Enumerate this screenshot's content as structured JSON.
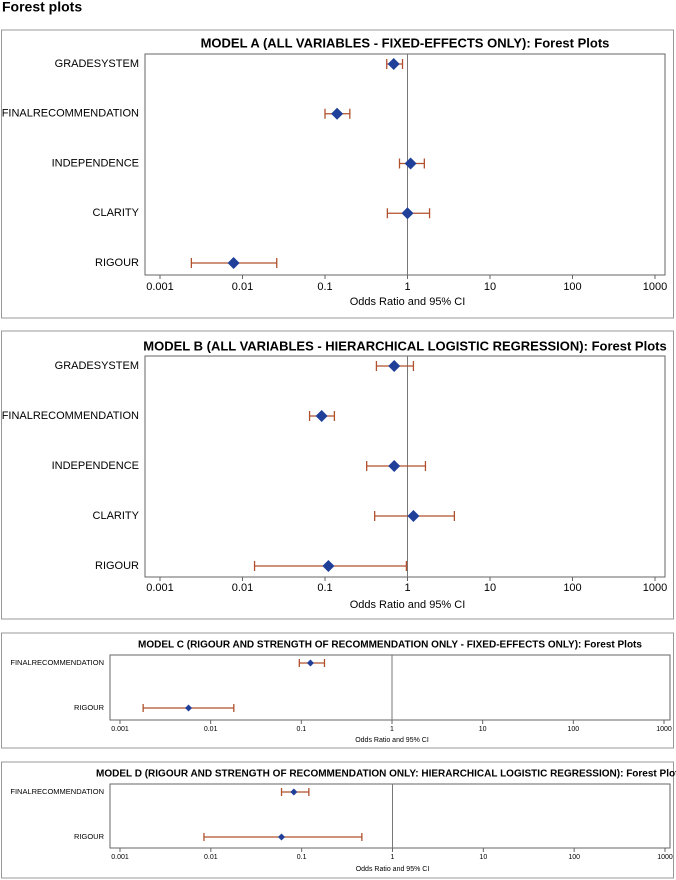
{
  "heading": "Forest plots",
  "chart_data": [
    {
      "type": "forest",
      "title": "MODEL A (ALL VARIABLES - FIXED-EFFECTS ONLY): Forest Plots",
      "x_label": "Odds Ratio and 95% CI",
      "categories": [
        "GRADESYSTEM",
        "FINALRECOMMENDATION",
        "INDEPENDENCE",
        "CLARITY",
        "RIGOUR"
      ],
      "values": [
        0.68,
        0.14,
        1.09,
        1.0,
        0.0078
      ],
      "lower": [
        0.56,
        0.1,
        0.8,
        0.57,
        0.0024
      ],
      "upper": [
        0.87,
        0.2,
        1.6,
        1.85,
        0.026
      ],
      "xscale": "log",
      "xlim": [
        0.001,
        1000
      ],
      "xticks": [
        0.001,
        0.01,
        0.1,
        1,
        10,
        100,
        1000
      ],
      "refline": 1,
      "marker_color": "#1f3f99",
      "ci_color": "#b0502c"
    },
    {
      "type": "forest",
      "title": "MODEL B (ALL VARIABLES - HIERARCHICAL LOGISTIC REGRESSION): Forest Plots",
      "x_label": "Odds Ratio and 95% CI",
      "categories": [
        "GRADESYSTEM",
        "FINALRECOMMENDATION",
        "INDEPENDENCE",
        "CLARITY",
        "RIGOUR"
      ],
      "values": [
        0.69,
        0.091,
        0.69,
        1.18,
        0.11
      ],
      "lower": [
        0.42,
        0.065,
        0.32,
        0.4,
        0.014
      ],
      "upper": [
        1.18,
        0.13,
        1.65,
        3.7,
        0.97
      ],
      "xscale": "log",
      "xlim": [
        0.001,
        1000
      ],
      "xticks": [
        0.001,
        0.01,
        0.1,
        1,
        10,
        100,
        1000
      ],
      "refline": 1,
      "marker_color": "#1f3f99",
      "ci_color": "#b0502c"
    },
    {
      "type": "forest",
      "title": "MODEL C (RIGOUR AND STRENGTH OF RECOMMENDATION ONLY - FIXED-EFFECTS ONLY): Forest Plots",
      "x_label": "Odds Ratio and 95% CI",
      "categories": [
        "FINALRECOMMENDATION",
        "RIGOUR"
      ],
      "values": [
        0.126,
        0.0057
      ],
      "lower": [
        0.095,
        0.0018
      ],
      "upper": [
        0.18,
        0.018
      ],
      "xscale": "log",
      "xlim": [
        0.001,
        1000
      ],
      "xticks": [
        0.001,
        0.01,
        0.1,
        1,
        10,
        100,
        1000
      ],
      "refline": 1,
      "marker_color": "#1f3f99",
      "ci_color": "#b0502c"
    },
    {
      "type": "forest",
      "title": "MODEL D (RIGOUR AND STRENGTH OF RECOMMENDATION ONLY: HIERARCHICAL LOGISTIC REGRESSION): Forest Plots",
      "x_label": "Odds Ratio and 95% CI",
      "categories": [
        "FINALRECOMMENDATION",
        "RIGOUR"
      ],
      "values": [
        0.082,
        0.06
      ],
      "lower": [
        0.06,
        0.0084
      ],
      "upper": [
        0.12,
        0.46
      ],
      "xscale": "log",
      "xlim": [
        0.001,
        1000
      ],
      "xticks": [
        0.001,
        0.01,
        0.1,
        1,
        10,
        100,
        1000
      ],
      "refline": 1,
      "marker_color": "#1f3f99",
      "ci_color": "#b0502c"
    }
  ]
}
